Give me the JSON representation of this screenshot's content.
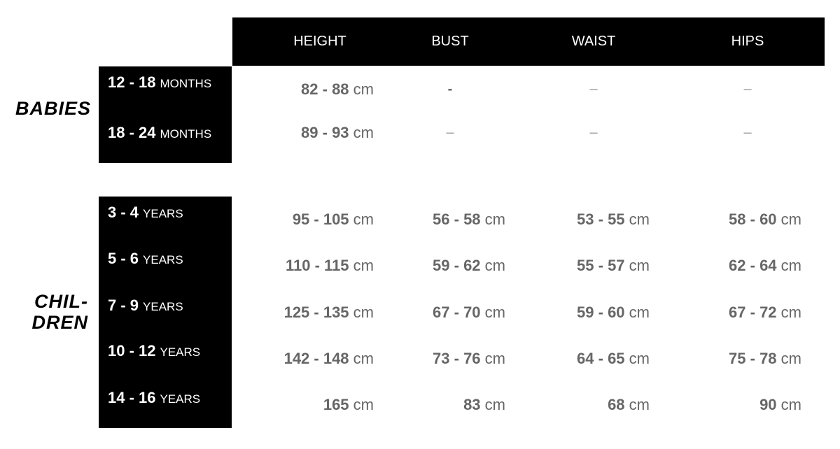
{
  "columns": [
    "HEIGHT",
    "BUST",
    "WAIST",
    "HIPS"
  ],
  "unit": "cm",
  "groups": [
    {
      "label": "BABIES",
      "rows": [
        {
          "age": "12 - 18",
          "period": "MONTHS",
          "values": [
            "82 - 88",
            "-",
            "–",
            "–"
          ]
        },
        {
          "age": "18 - 24",
          "period": "MONTHS",
          "values": [
            "89 - 93",
            "–",
            "–",
            "–"
          ]
        }
      ]
    },
    {
      "label_line1": "CHIL-",
      "label_line2": "DREN",
      "rows": [
        {
          "age": "3 - 4",
          "period": "YEARS",
          "values": [
            "95 - 105",
            "56 - 58",
            "53 - 55",
            "58 - 60"
          ]
        },
        {
          "age": "5 - 6",
          "period": "YEARS",
          "values": [
            "110 - 115",
            "59 - 62",
            "55 - 57",
            "62 - 64"
          ]
        },
        {
          "age": "7 - 9",
          "period": "YEARS",
          "values": [
            "125 - 135",
            "67 - 70",
            "59 - 60",
            "67 - 72"
          ]
        },
        {
          "age": "10 - 12",
          "period": "YEARS",
          "values": [
            "142 - 148",
            "73 - 76",
            "64 - 65",
            "75 - 78"
          ]
        },
        {
          "age": "14 - 16",
          "period": "YEARS",
          "values": [
            "165",
            "83",
            "68",
            "90"
          ]
        }
      ]
    }
  ]
}
